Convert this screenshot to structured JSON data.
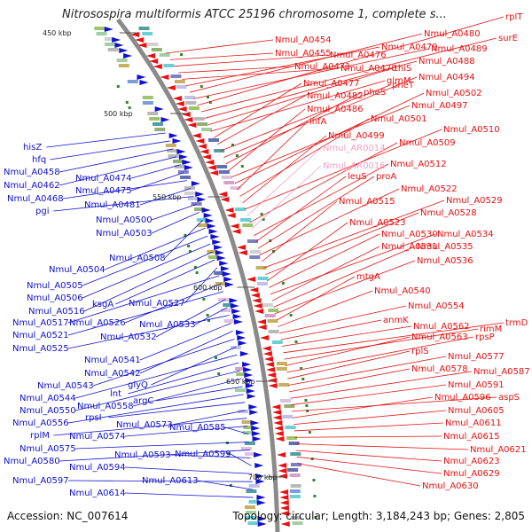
{
  "title": "Nitrosospira multiformis ATCC 25196 chromosome 1, complete s...",
  "footer": {
    "accession": "Accession: NC_007614",
    "summary": "Topology: circular; Length: 3,184,243 bp; Genes: 2,805"
  },
  "colors": {
    "forward": "#1010d0",
    "reverse": "#e81010",
    "rna": "#f0a0c8",
    "backbone": "#8a8a8a"
  },
  "ticks": [
    "450 kbp",
    "500 kbp",
    "550 kbp",
    "600 kbp",
    "650 kbp",
    "700 kbp"
  ],
  "left_labels": [
    "hisZ",
    "hfq",
    "Nmul_A0458",
    "Nmul_A0462",
    "Nmul_A0474",
    "Nmul_A0475",
    "Nmul_A0468",
    "Nmul_A0481",
    "pgi",
    "Nmul_A0500",
    "Nmul_A0503",
    "Nmul_A0508",
    "Nmul_A0504",
    "Nmul_A0505",
    "Nmul_A0506",
    "Nmul_A0516",
    "ksgA",
    "Nmul_A0527",
    "Nmul_A0517",
    "Nmul_A0526",
    "Nmul_A0521",
    "Nmul_A0532",
    "Nmul_A0533",
    "Nmul_A0525",
    "Nmul_A0541",
    "Nmul_A0542",
    "Nmul_A0543",
    "glyQ",
    "Nmul_A0544",
    "lnt",
    "Nmul_A0550",
    "Nmul_A0558",
    "argC",
    "Nmul_A0556",
    "rpsI",
    "Nmul_A0573",
    "rplM",
    "Nmul_A0574",
    "Nmul_A0585",
    "Nmul_A0575",
    "Nmul_A0580",
    "Nmul_A0593",
    "Nmul_A0599",
    "Nmul_A0594",
    "Nmul_A0597",
    "Nmul_A0613",
    "Nmul_A0614"
  ],
  "right_labels": [
    "Nmul_A0454",
    "Nmul_A0455",
    "Nmul_A0476",
    "Nmul_A0471",
    "Nmul_A0478",
    "Nmul_A0479",
    "Nmul_A0480",
    "Nmul_A0489",
    "rplT",
    "surE",
    "Nmul_A0488",
    "thiS",
    "glmM",
    "Nmul_A0477",
    "Nmul_A0482",
    "pheT",
    "Nmul_A0494",
    "pheS",
    "Nmul_A0486",
    "Nmul_A0497",
    "Nmul_A0502",
    "ihfA",
    "Nmul_A0501",
    "Nmul_A0499",
    "Nmul_A0510",
    "Nmul_AR0014",
    "Nmul_A0509",
    "Nmul_AR0016",
    "Nmul_A0512",
    "leuS",
    "proA",
    "Nmul_A0522",
    "Nmul_A0515",
    "Nmul_A0529",
    "Nmul_A0528",
    "Nmul_A0523",
    "Nmul_A0530",
    "Nmul_A0534",
    "Nmul_A0531",
    "Nmul_A0535",
    "Nmul_A0536",
    "mtgA",
    "Nmul_A0540",
    "Nmul_A0554",
    "anmK",
    "Nmul_A0562",
    "trmD",
    "rimM",
    "Nmul_A0563",
    "rpsP",
    "rplS",
    "Nmul_A0577",
    "Nmul_A0578",
    "Nmul_A0587",
    "Nmul_A0591",
    "aspS",
    "Nmul_A0596",
    "Nmul_A0605",
    "Nmul_A0611",
    "Nmul_A0615",
    "Nmul_A0621",
    "Nmul_A0623",
    "Nmul_A0629",
    "Nmul_A0630"
  ]
}
